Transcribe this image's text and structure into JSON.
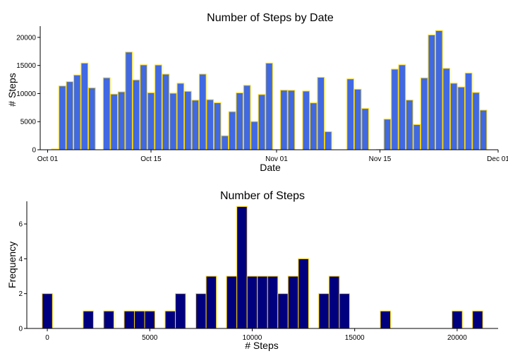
{
  "chart_data": [
    {
      "type": "bar",
      "title": "Number of Steps by Date",
      "xlabel": "Date",
      "ylabel": "# Steps",
      "x_ticks": [
        "Oct 01",
        "Oct 15",
        "Nov 01",
        "Nov 15",
        "Dec 01"
      ],
      "x_tick_dates": [
        "2012-10-01",
        "2012-10-15",
        "2012-11-01",
        "2012-11-15",
        "2012-12-01"
      ],
      "y_ticks": [
        0,
        5000,
        10000,
        15000,
        20000
      ],
      "ylim": [
        0,
        22000
      ],
      "x_range": [
        "2012-09-30",
        "2012-12-01"
      ],
      "bar_fill": "#4169E1",
      "bar_outline": "#FFD700",
      "dates": [
        "2012-10-01",
        "2012-10-02",
        "2012-10-03",
        "2012-10-04",
        "2012-10-05",
        "2012-10-06",
        "2012-10-07",
        "2012-10-08",
        "2012-10-09",
        "2012-10-10",
        "2012-10-11",
        "2012-10-12",
        "2012-10-13",
        "2012-10-14",
        "2012-10-15",
        "2012-10-16",
        "2012-10-17",
        "2012-10-18",
        "2012-10-19",
        "2012-10-20",
        "2012-10-21",
        "2012-10-22",
        "2012-10-23",
        "2012-10-24",
        "2012-10-25",
        "2012-10-26",
        "2012-10-27",
        "2012-10-28",
        "2012-10-29",
        "2012-10-30",
        "2012-10-31",
        "2012-11-01",
        "2012-11-02",
        "2012-11-03",
        "2012-11-04",
        "2012-11-05",
        "2012-11-06",
        "2012-11-07",
        "2012-11-08",
        "2012-11-09",
        "2012-11-10",
        "2012-11-11",
        "2012-11-12",
        "2012-11-13",
        "2012-11-14",
        "2012-11-15",
        "2012-11-16",
        "2012-11-17",
        "2012-11-18",
        "2012-11-19",
        "2012-11-20",
        "2012-11-21",
        "2012-11-22",
        "2012-11-23",
        "2012-11-24",
        "2012-11-25",
        "2012-11-26",
        "2012-11-27",
        "2012-11-28",
        "2012-11-29",
        "2012-11-30"
      ],
      "values": [
        0,
        126,
        11352,
        12116,
        13294,
        15420,
        11015,
        0,
        12811,
        9900,
        10304,
        17382,
        12426,
        15098,
        10139,
        15084,
        13452,
        10056,
        11829,
        10395,
        8821,
        13460,
        8918,
        8355,
        2492,
        6778,
        10119,
        11458,
        5018,
        9819,
        15414,
        0,
        10600,
        10571,
        0,
        10439,
        8334,
        12883,
        3219,
        0,
        0,
        12608,
        10765,
        7336,
        0,
        41,
        5441,
        14339,
        15110,
        8841,
        4472,
        12787,
        20427,
        21194,
        14478,
        11834,
        11162,
        13646,
        10183,
        7047,
        0
      ]
    },
    {
      "type": "bar",
      "title": "Number of Steps",
      "xlabel": "# Steps",
      "ylabel": "Frequency",
      "x_ticks": [
        0,
        5000,
        10000,
        15000,
        20000
      ],
      "y_ticks": [
        0,
        2,
        4,
        6
      ],
      "xlim": [
        -1000,
        22000
      ],
      "ylim": [
        0,
        7.3
      ],
      "bin_width": 500,
      "bar_fill": "#00007F",
      "bar_outline": "#FFD700",
      "bin_centers": [
        -500,
        0,
        500,
        1000,
        1500,
        2000,
        2500,
        3000,
        3500,
        4000,
        4500,
        5000,
        5500,
        6000,
        6500,
        7000,
        7500,
        8000,
        8500,
        9000,
        9500,
        10000,
        10500,
        11000,
        11500,
        12000,
        12500,
        13000,
        13500,
        14000,
        14500,
        15000,
        15500,
        16000,
        16500,
        17000,
        17500,
        18000,
        18500,
        19000,
        19500,
        20000,
        20500,
        21000,
        21500
      ],
      "counts": [
        0,
        2,
        0,
        0,
        0,
        1,
        0,
        1,
        0,
        1,
        1,
        1,
        0,
        1,
        2,
        0,
        2,
        3,
        0,
        3,
        7,
        3,
        3,
        3,
        2,
        3,
        4,
        0,
        2,
        3,
        2,
        0,
        0,
        0,
        1,
        0,
        0,
        0,
        0,
        0,
        0,
        1,
        0,
        1,
        0
      ],
      "bin_centers_note": ""
    }
  ]
}
